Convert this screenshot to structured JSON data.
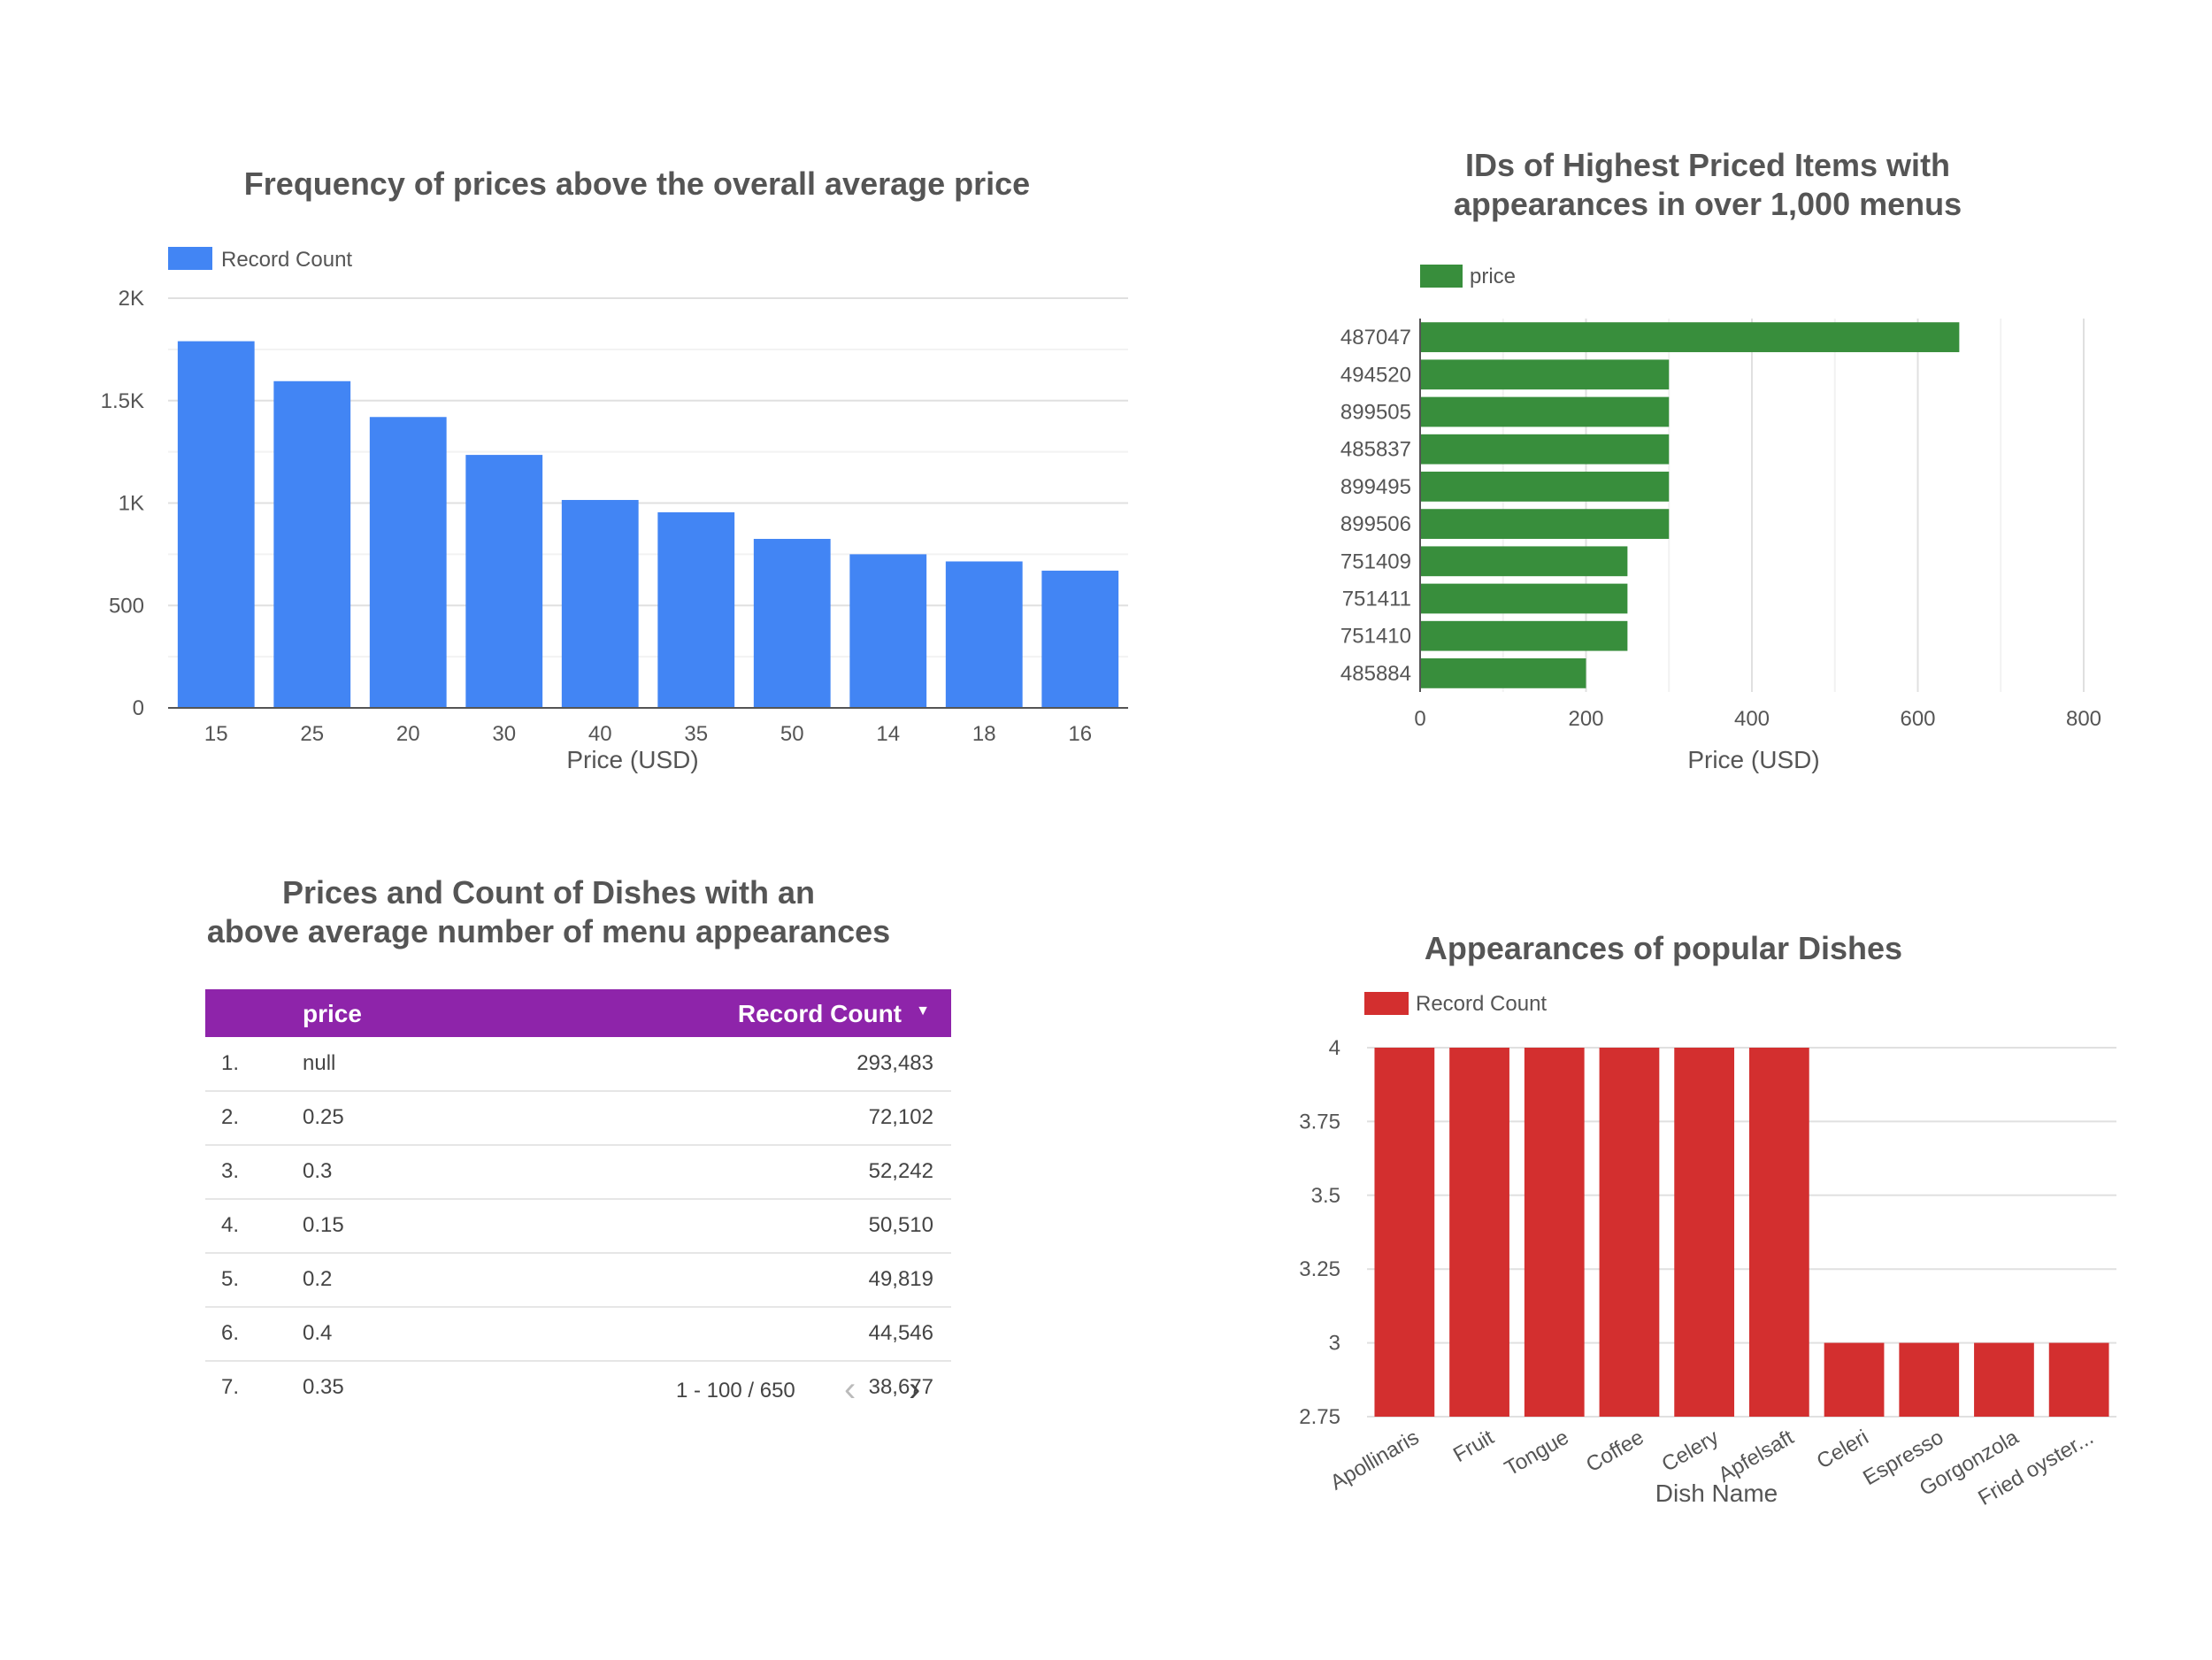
{
  "charts": {
    "freq": {
      "title": "Frequency of prices above the overall average price",
      "legend": "Record Count",
      "color": "#4285f4"
    },
    "ids": {
      "title_line1": "IDs of Highest Priced Items with",
      "title_line2": "appearances in over 1,000 menus",
      "legend": "price",
      "color": "#388e3c"
    },
    "dishes": {
      "title": "Appearances of popular Dishes",
      "legend": "Record Count",
      "color": "#d32f2f"
    }
  },
  "table": {
    "title_line1": "Prices and Count of Dishes with an",
    "title_line2": "above average number of menu appearances",
    "header_color": "#8e24aa",
    "columns": {
      "price": "price",
      "count": "Record Count",
      "sort_icon": "sort-desc-icon"
    },
    "rows": [
      {
        "index": "1.",
        "price": "null",
        "count": "293,483"
      },
      {
        "index": "2.",
        "price": "0.25",
        "count": "72,102"
      },
      {
        "index": "3.",
        "price": "0.3",
        "count": "52,242"
      },
      {
        "index": "4.",
        "price": "0.15",
        "count": "50,510"
      },
      {
        "index": "5.",
        "price": "0.2",
        "count": "49,819"
      },
      {
        "index": "6.",
        "price": "0.4",
        "count": "44,546"
      },
      {
        "index": "7.",
        "price": "0.35",
        "count": "38,677"
      }
    ],
    "pagination": "1 - 100 / 650",
    "prev_icon": "chevron-left-icon",
    "next_icon": "chevron-right-icon"
  },
  "chart_data": [
    {
      "type": "bar",
      "title": "Frequency of prices above the overall average price",
      "categories": [
        "15",
        "25",
        "20",
        "30",
        "40",
        "35",
        "50",
        "14",
        "18",
        "16"
      ],
      "series": [
        {
          "name": "Record Count",
          "values": [
            1790,
            1595,
            1420,
            1235,
            1015,
            955,
            825,
            750,
            715,
            670
          ]
        }
      ],
      "xlabel": "Price (USD)",
      "ylabel": "",
      "ylim": [
        0,
        2000
      ],
      "yticks": [
        0,
        500,
        1000,
        1500,
        2000
      ],
      "ytick_labels": [
        "0",
        "500",
        "1K",
        "1.5K",
        "2K"
      ],
      "grid": true,
      "legend": "top-left"
    },
    {
      "type": "bar",
      "orientation": "horizontal",
      "title": "IDs of Highest Priced Items with appearances in over 1,000 menus",
      "categories": [
        "487047",
        "494520",
        "899505",
        "485837",
        "899495",
        "899506",
        "751409",
        "751411",
        "751410",
        "485884"
      ],
      "series": [
        {
          "name": "price",
          "values": [
            650,
            300,
            300,
            300,
            300,
            300,
            250,
            250,
            250,
            200
          ]
        }
      ],
      "xlabel": "Price (USD)",
      "ylabel": "",
      "xlim": [
        0,
        800
      ],
      "xticks": [
        0,
        200,
        400,
        600,
        800
      ],
      "grid": true,
      "legend": "top-left"
    },
    {
      "type": "bar",
      "title": "Appearances of popular Dishes",
      "categories": [
        "Apollinaris",
        "Fruit",
        "Tongue",
        "Coffee",
        "Celery",
        "Apfelsaft",
        "Celeri",
        "Espresso",
        "Gorgonzola",
        "Fried oyster..."
      ],
      "series": [
        {
          "name": "Record Count",
          "values": [
            4,
            4,
            4,
            4,
            4,
            4,
            3,
            3,
            3,
            3
          ]
        }
      ],
      "xlabel": "Dish Name",
      "ylabel": "",
      "ylim": [
        2.75,
        4
      ],
      "yticks": [
        2.75,
        3,
        3.25,
        3.5,
        3.75,
        4
      ],
      "ytick_labels": [
        "2.75",
        "3",
        "3.25",
        "3.5",
        "3.75",
        "4"
      ],
      "grid": true,
      "legend": "top-left"
    }
  ]
}
